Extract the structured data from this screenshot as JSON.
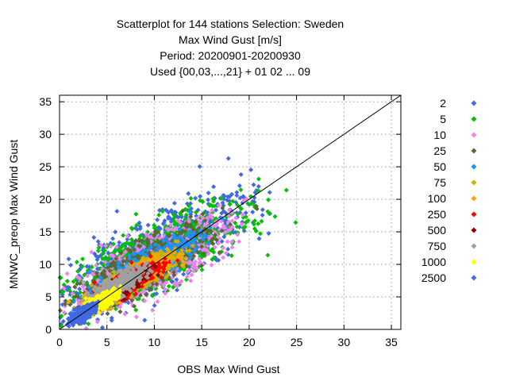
{
  "chart_data": {
    "type": "scatter",
    "title_lines": [
      "Scatterplot for  144 stations Selection: Sweden",
      "Max Wind Gust [m/s]",
      "Period: 20200901-20200930",
      "Used {00,03,...,21} + 01 02 ... 09"
    ],
    "xlabel": "OBS Max Wind Gust",
    "ylabel": "MNWC_preop Max Wind Gust",
    "xlim": [
      0,
      36
    ],
    "ylim": [
      0,
      36
    ],
    "xticks": [
      0,
      5,
      10,
      15,
      20,
      25,
      30,
      35
    ],
    "yticks": [
      0,
      5,
      10,
      15,
      20,
      25,
      30,
      35
    ],
    "grid": true,
    "reference_line": "y = x",
    "legend_position": "right",
    "series": [
      {
        "name": "2",
        "color": "#4169e1",
        "center": [
          10,
          11.5
        ],
        "spread": [
          8.5,
          8
        ],
        "rho": 0.78,
        "range": [
          0,
          30
        ]
      },
      {
        "name": "5",
        "color": "#00c000",
        "center": [
          10,
          11
        ],
        "spread": [
          8.5,
          7
        ],
        "rho": 0.78,
        "range": [
          0,
          30
        ]
      },
      {
        "name": "10",
        "color": "#ee82ee",
        "center": [
          9.5,
          10
        ],
        "spread": [
          7.5,
          6.5
        ],
        "rho": 0.8,
        "range": [
          0,
          29
        ]
      },
      {
        "name": "25",
        "color": "#556b2f",
        "center": [
          9,
          9.5
        ],
        "spread": [
          6,
          5.5
        ],
        "rho": 0.82,
        "range": [
          0,
          24
        ]
      },
      {
        "name": "50",
        "color": "#1e90ff",
        "center": [
          9,
          9.5
        ],
        "spread": [
          4.5,
          4
        ],
        "rho": 0.85,
        "range": [
          0,
          21
        ]
      },
      {
        "name": "75",
        "color": "#c8b400",
        "center": [
          8,
          8
        ],
        "spread": [
          4,
          3.5
        ],
        "rho": 0.86,
        "range": [
          0,
          18
        ]
      },
      {
        "name": "100",
        "color": "#ffa500",
        "center": [
          7.5,
          7.5
        ],
        "spread": [
          3.5,
          3.2
        ],
        "rho": 0.86,
        "range": [
          0,
          16
        ]
      },
      {
        "name": "250",
        "color": "#ff0000",
        "center": [
          7,
          7
        ],
        "spread": [
          3,
          2.8
        ],
        "rho": 0.86,
        "range": [
          0,
          15
        ]
      },
      {
        "name": "500",
        "color": "#8b0000",
        "center": [
          6,
          6
        ],
        "spread": [
          2.5,
          2.3
        ],
        "rho": 0.86,
        "range": [
          0,
          12
        ]
      },
      {
        "name": "750",
        "color": "#a0a0a0",
        "center": [
          6,
          6.5
        ],
        "spread": [
          2.5,
          2.5
        ],
        "rho": 0.8,
        "range": [
          0,
          12
        ]
      },
      {
        "name": "1000",
        "color": "#ffff00",
        "center": [
          4,
          4
        ],
        "spread": [
          1.8,
          1.7
        ],
        "rho": 0.8,
        "range": [
          0,
          8
        ]
      },
      {
        "name": "2500",
        "color": "#4169e1",
        "center": [
          2.5,
          2.5
        ],
        "spread": [
          1.2,
          1.2
        ],
        "rho": 0.75,
        "range": [
          0,
          5
        ]
      }
    ]
  }
}
